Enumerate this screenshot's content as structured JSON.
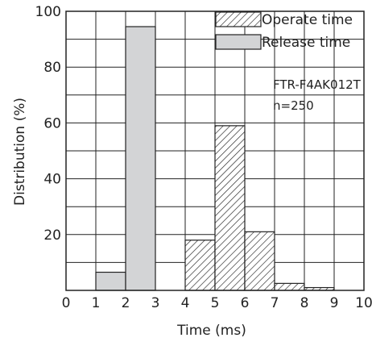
{
  "chart_data": {
    "type": "bar",
    "xlabel": "Time (ms)",
    "ylabel": "Distribution (%)",
    "xlim": [
      0,
      10
    ],
    "ylim": [
      0,
      100
    ],
    "x_ticks": [
      "0",
      "1",
      "2",
      "3",
      "4",
      "5",
      "6",
      "7",
      "8",
      "9",
      "10"
    ],
    "y_ticks": [
      "20",
      "40",
      "60",
      "80",
      "100"
    ],
    "grid": true,
    "legend_position": "top-right",
    "series": [
      {
        "name": "Operate time",
        "style": "hatched",
        "bins": [
          {
            "from": 4,
            "to": 5,
            "value": 18
          },
          {
            "from": 5,
            "to": 6,
            "value": 59
          },
          {
            "from": 6,
            "to": 7,
            "value": 21
          },
          {
            "from": 7,
            "to": 8,
            "value": 2.5
          },
          {
            "from": 8,
            "to": 9,
            "value": 1
          }
        ]
      },
      {
        "name": "Release time",
        "style": "gray",
        "color": "#d3d4d6",
        "bins": [
          {
            "from": 1,
            "to": 2,
            "value": 6.5
          },
          {
            "from": 2,
            "to": 3,
            "value": 94.5
          }
        ]
      }
    ],
    "annotations": [
      "FTR-F4AK012T",
      "n=250"
    ]
  }
}
